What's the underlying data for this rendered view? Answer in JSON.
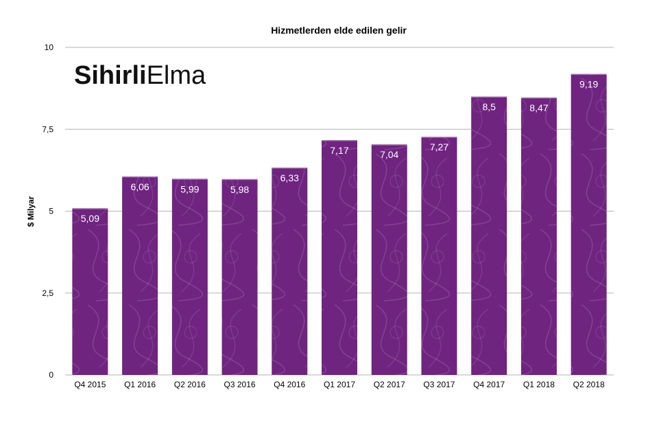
{
  "logo": {
    "bold_part": "Sihirli",
    "light_part": "Elma"
  },
  "chart_data": {
    "type": "bar",
    "title": "Hizmetlerden elde edilen gelir",
    "xlabel": "",
    "ylabel": "$ Milyar",
    "ylim": [
      0,
      10
    ],
    "y_ticks": [
      0,
      2.5,
      5,
      7.5,
      10
    ],
    "y_tick_labels": [
      "0",
      "2,5",
      "5",
      "7,5",
      "10"
    ],
    "grid": true,
    "legend": "none",
    "bar_color": "#6f2480",
    "categories": [
      "Q4 2015",
      "Q1 2016",
      "Q2 2016",
      "Q3 2016",
      "Q4 2016",
      "Q1 2017",
      "Q2 2017",
      "Q3 2017",
      "Q4 2017",
      "Q1 2018",
      "Q2 2018"
    ],
    "values": [
      5.09,
      6.06,
      5.99,
      5.98,
      6.33,
      7.17,
      7.04,
      7.27,
      8.5,
      8.47,
      9.19
    ],
    "value_labels": [
      "5,09",
      "6,06",
      "5,99",
      "5,98",
      "6,33",
      "7,17",
      "7,04",
      "7,27",
      "8,5",
      "8,47",
      "9,19"
    ]
  }
}
